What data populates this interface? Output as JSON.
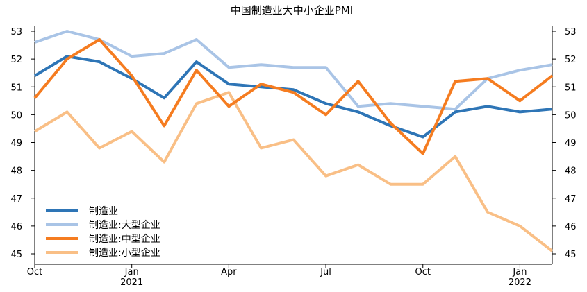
{
  "chart_data": {
    "type": "line",
    "title": "中国制造业大中小企业PMI",
    "x": [
      "2020-10",
      "2020-11",
      "2020-12",
      "2021-01",
      "2021-02",
      "2021-03",
      "2021-04",
      "2021-05",
      "2021-06",
      "2021-07",
      "2021-08",
      "2021-09",
      "2021-10",
      "2021-11",
      "2021-12",
      "2022-01",
      "2022-02"
    ],
    "x_tick_labels": [
      {
        "index": 0,
        "month": "Oct",
        "year": ""
      },
      {
        "index": 3,
        "month": "Jan",
        "year": "2021"
      },
      {
        "index": 6,
        "month": "Apr",
        "year": ""
      },
      {
        "index": 9,
        "month": "Jul",
        "year": ""
      },
      {
        "index": 12,
        "month": "Oct",
        "year": ""
      },
      {
        "index": 15,
        "month": "Jan",
        "year": "2022"
      }
    ],
    "ylim": [
      45,
      53
    ],
    "yticks": [
      "45",
      "46",
      "47",
      "48",
      "49",
      "50",
      "51",
      "52",
      "53"
    ],
    "secondary_y_axis": true,
    "grid": false,
    "legend_position": "bottom-left",
    "series": [
      {
        "name": "制造业",
        "color": "#2e75b6",
        "values": [
          51.4,
          52.1,
          51.9,
          51.3,
          50.6,
          51.9,
          51.1,
          51.0,
          50.9,
          50.4,
          50.1,
          49.6,
          49.2,
          50.1,
          50.3,
          50.1,
          50.2
        ]
      },
      {
        "name": "制造业:大型企业",
        "color": "#a9c4e6",
        "values": [
          52.6,
          53.0,
          52.7,
          52.1,
          52.2,
          52.7,
          51.7,
          51.8,
          51.7,
          51.7,
          50.3,
          50.4,
          50.3,
          50.2,
          51.3,
          51.6,
          51.8
        ]
      },
      {
        "name": "制造业:中型企业",
        "color": "#f57c20",
        "values": [
          50.6,
          52.0,
          52.7,
          51.4,
          49.6,
          51.6,
          50.3,
          51.1,
          50.8,
          50.0,
          51.2,
          49.7,
          48.6,
          51.2,
          51.3,
          50.5,
          51.4
        ]
      },
      {
        "name": "制造业:小型企业",
        "color": "#f9bf86",
        "values": [
          49.4,
          50.1,
          48.8,
          49.4,
          48.3,
          50.4,
          50.8,
          48.8,
          49.1,
          47.8,
          48.2,
          47.5,
          47.5,
          48.5,
          46.5,
          46.0,
          45.1
        ]
      }
    ]
  }
}
